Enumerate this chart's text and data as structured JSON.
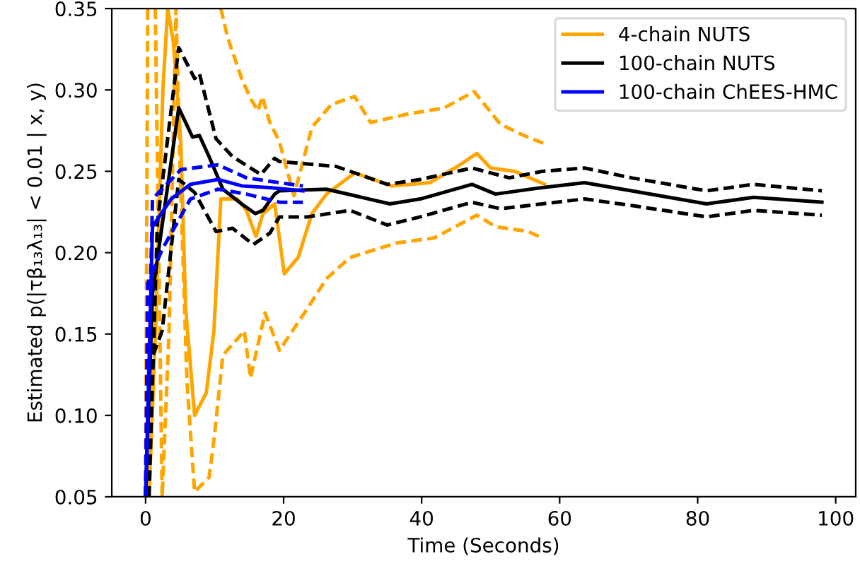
{
  "chart_data": {
    "type": "line",
    "xlabel": "Time (Seconds)",
    "ylabel": "Estimated p(|τβ₁₃λ₁₃| < 0.01 | x, y)",
    "xlim": [
      -4.9,
      102.9
    ],
    "xticks": [
      0,
      20,
      40,
      60,
      80,
      100
    ],
    "ylim": [
      0.05,
      0.35
    ],
    "yticks": [
      0.05,
      {
        "value": 0.1,
        "label": "0.10"
      },
      0.15,
      {
        "value": 0.2,
        "label": "0.20"
      },
      0.25,
      {
        "value": 0.3,
        "label": "0.30"
      },
      0.35
    ],
    "grid": false,
    "legend": "top right",
    "marker": "none",
    "series": [
      {
        "name": "4-chain NUTS",
        "color": "#ffa500",
        "line_style": "solid",
        "x": [
          0.5,
          1.5,
          2.5,
          3.2,
          4.0,
          5.1,
          5.8,
          7.1,
          8.8,
          9.9,
          10.9,
          13.3,
          14.6,
          16.0,
          17.0,
          18.7,
          20.1,
          22.1,
          24.1,
          26.2,
          30.3,
          35.7,
          41.2,
          45.2,
          48.0,
          50.0,
          53.5,
          57.8
        ],
        "values": [
          0.05,
          0.16,
          0.3,
          0.35,
          0.33,
          0.268,
          0.166,
          0.1,
          0.114,
          0.152,
          0.233,
          0.233,
          0.226,
          0.21,
          0.224,
          0.23,
          0.187,
          0.197,
          0.224,
          0.236,
          0.249,
          0.241,
          0.243,
          0.253,
          0.261,
          0.252,
          0.25,
          0.242
        ]
      },
      {
        "color": "#ffa500",
        "line_style": "dashed",
        "x": [
          0.0,
          0.3,
          5.0,
          10.9,
          11.9,
          14.0,
          15.3,
          16.3,
          16.9,
          18.0,
          19.4,
          21.5,
          24.1,
          26.9,
          30.3,
          32.6,
          37.8,
          43.3,
          47.6,
          51.4,
          54.8,
          57.8
        ],
        "values": [
          0.05,
          0.35,
          null,
          0.35,
          0.332,
          0.306,
          0.294,
          0.287,
          0.296,
          0.28,
          0.268,
          0.235,
          0.277,
          0.291,
          0.296,
          0.28,
          0.285,
          0.289,
          0.299,
          0.279,
          0.272,
          0.267
        ]
      },
      {
        "color": "#ffa500",
        "line_style": "dashed",
        "x": [
          1.4,
          2.4,
          3.4,
          4.4,
          5.0,
          6.0,
          7.1,
          9.2,
          9.9,
          11.2,
          13.3,
          14.3,
          15.2,
          17.3,
          19.4,
          23.5,
          26.2,
          29.6,
          36.4,
          41.8,
          48.0,
          50.7,
          55.4,
          57.5
        ],
        "values": [
          0.35,
          0.05,
          0.152,
          0.35,
          0.25,
          0.12,
          0.053,
          0.062,
          0.085,
          0.137,
          0.147,
          0.152,
          0.123,
          0.163,
          0.14,
          0.166,
          0.184,
          0.197,
          0.206,
          0.209,
          0.223,
          0.216,
          0.213,
          0.209
        ]
      },
      {
        "name": "100-chain NUTS",
        "color": "#000000",
        "line_style": "solid",
        "x": [
          0.0,
          1.0,
          4.8,
          6.8,
          7.8,
          9.2,
          11.2,
          13.9,
          15.9,
          17.0,
          18.7,
          19.4,
          26.2,
          35.4,
          39.8,
          47.3,
          50.7,
          57.5,
          63.6,
          70.4,
          81.3,
          88.1,
          98.0
        ],
        "values": [
          0.05,
          0.175,
          0.289,
          0.271,
          0.272,
          0.259,
          0.239,
          0.23,
          0.224,
          0.226,
          0.236,
          0.238,
          0.239,
          0.23,
          0.233,
          0.242,
          0.236,
          0.24,
          0.243,
          0.238,
          0.23,
          0.234,
          0.231
        ]
      },
      {
        "color": "#000000",
        "line_style": "dashed",
        "x": [
          0.5,
          1.7,
          4.8,
          7.1,
          7.8,
          10.2,
          12.6,
          16.7,
          18.7,
          19.4,
          27.6,
          35.0,
          39.8,
          47.3,
          52.7,
          57.5,
          63.6,
          70.4,
          81.3,
          88.1,
          98.0
        ],
        "values": [
          0.05,
          0.218,
          0.326,
          0.307,
          0.31,
          0.27,
          0.259,
          0.248,
          0.258,
          0.256,
          0.253,
          0.242,
          0.245,
          0.252,
          0.246,
          0.25,
          0.252,
          0.246,
          0.238,
          0.242,
          0.238
        ]
      },
      {
        "color": "#000000",
        "line_style": "dashed",
        "x": [
          0.0,
          0.3,
          2.4,
          4.8,
          7.1,
          10.2,
          12.6,
          15.6,
          18.0,
          19.4,
          23.5,
          29.6,
          35.0,
          39.8,
          47.3,
          51.4,
          57.5,
          63.6,
          70.4,
          81.3,
          88.1,
          98.0
        ],
        "values": [
          0.05,
          0.128,
          0.152,
          0.245,
          0.237,
          0.213,
          0.215,
          0.205,
          0.212,
          0.222,
          0.222,
          0.226,
          0.217,
          0.222,
          0.231,
          0.227,
          0.23,
          0.233,
          0.229,
          0.222,
          0.226,
          0.223
        ]
      },
      {
        "name": "100-chain ChEES-HMC",
        "color": "#0000ff",
        "line_style": "solid",
        "x": [
          0.0,
          1.0,
          3.7,
          6.5,
          10.5,
          14.0,
          18.0,
          22.8
        ],
        "values": [
          0.05,
          0.216,
          0.233,
          0.242,
          0.245,
          0.241,
          0.24,
          0.238
        ]
      },
      {
        "color": "#0000ff",
        "line_style": "dashed",
        "x": [
          0.0,
          1.0,
          5.1,
          10.5,
          14.6,
          19.4,
          22.8
        ],
        "values": [
          0.05,
          0.233,
          0.251,
          0.254,
          0.246,
          0.243,
          0.241
        ]
      },
      {
        "color": "#0000ff",
        "line_style": "dashed",
        "x": [
          0.0,
          0.3,
          2.4,
          6.5,
          10.5,
          14.6,
          19.4,
          22.8
        ],
        "values": [
          0.05,
          0.181,
          0.202,
          0.233,
          0.239,
          0.236,
          0.231,
          0.231
        ]
      }
    ]
  }
}
